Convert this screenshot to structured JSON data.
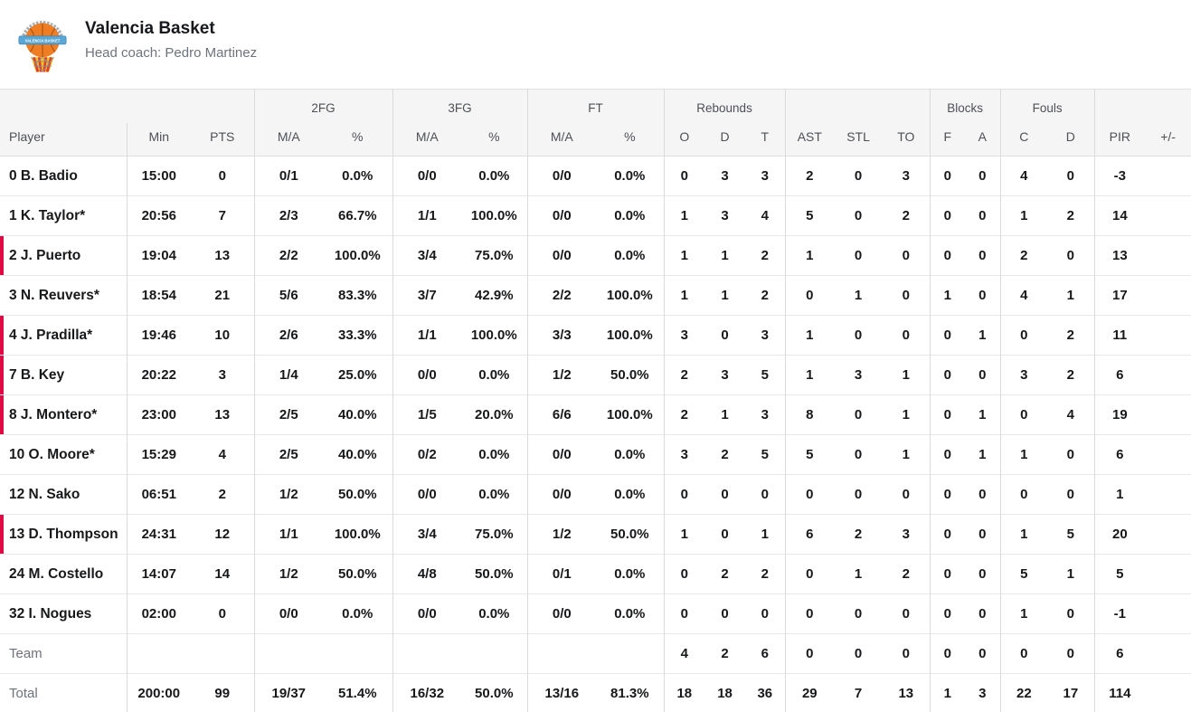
{
  "header": {
    "team_name": "Valencia Basket",
    "coach": "Head coach: Pedro Martinez",
    "logo_text": "VALENCIA BASKET",
    "logo_icon": "valencia-basket-crest-icon"
  },
  "colors": {
    "on_court_marker": "#e00a44",
    "header_background": "#f5f5f6",
    "row_border": "#e8e8ea",
    "column_border": "#dbdbdd",
    "stat_text": "#17181a",
    "muted_text": "#6d737b",
    "ball_orange": "#ee7d23",
    "banner_blue": "#5aa7d6"
  },
  "table": {
    "groups": [
      {
        "label": "",
        "span": 3
      },
      {
        "label": "2FG",
        "span": 2
      },
      {
        "label": "3FG",
        "span": 2
      },
      {
        "label": "FT",
        "span": 2
      },
      {
        "label": "Rebounds",
        "span": 3
      },
      {
        "label": "",
        "span": 3
      },
      {
        "label": "Blocks",
        "span": 2
      },
      {
        "label": "Fouls",
        "span": 2
      },
      {
        "label": "",
        "span": 2
      }
    ],
    "columns": [
      "Player",
      "Min",
      "PTS",
      "M/A",
      "%",
      "M/A",
      "%",
      "M/A",
      "%",
      "O",
      "D",
      "T",
      "AST",
      "STL",
      "TO",
      "F",
      "A",
      "C",
      "D",
      "PIR",
      "+/-"
    ],
    "rows": [
      {
        "type": "player",
        "on_court": false,
        "cells": [
          "0 B. Badio",
          "15:00",
          "0",
          "0/1",
          "0.0%",
          "0/0",
          "0.0%",
          "0/0",
          "0.0%",
          "0",
          "3",
          "3",
          "2",
          "0",
          "3",
          "0",
          "0",
          "4",
          "0",
          "-3",
          ""
        ]
      },
      {
        "type": "player",
        "on_court": false,
        "cells": [
          "1 K. Taylor*",
          "20:56",
          "7",
          "2/3",
          "66.7%",
          "1/1",
          "100.0%",
          "0/0",
          "0.0%",
          "1",
          "3",
          "4",
          "5",
          "0",
          "2",
          "0",
          "0",
          "1",
          "2",
          "14",
          ""
        ]
      },
      {
        "type": "player",
        "on_court": true,
        "cells": [
          "2 J. Puerto",
          "19:04",
          "13",
          "2/2",
          "100.0%",
          "3/4",
          "75.0%",
          "0/0",
          "0.0%",
          "1",
          "1",
          "2",
          "1",
          "0",
          "0",
          "0",
          "0",
          "2",
          "0",
          "13",
          ""
        ]
      },
      {
        "type": "player",
        "on_court": false,
        "cells": [
          "3 N. Reuvers*",
          "18:54",
          "21",
          "5/6",
          "83.3%",
          "3/7",
          "42.9%",
          "2/2",
          "100.0%",
          "1",
          "1",
          "2",
          "0",
          "1",
          "0",
          "1",
          "0",
          "4",
          "1",
          "17",
          ""
        ]
      },
      {
        "type": "player",
        "on_court": true,
        "cells": [
          "4 J. Pradilla*",
          "19:46",
          "10",
          "2/6",
          "33.3%",
          "1/1",
          "100.0%",
          "3/3",
          "100.0%",
          "3",
          "0",
          "3",
          "1",
          "0",
          "0",
          "0",
          "1",
          "0",
          "2",
          "11",
          ""
        ]
      },
      {
        "type": "player",
        "on_court": true,
        "cells": [
          "7 B. Key",
          "20:22",
          "3",
          "1/4",
          "25.0%",
          "0/0",
          "0.0%",
          "1/2",
          "50.0%",
          "2",
          "3",
          "5",
          "1",
          "3",
          "1",
          "0",
          "0",
          "3",
          "2",
          "6",
          ""
        ]
      },
      {
        "type": "player",
        "on_court": true,
        "cells": [
          "8 J. Montero*",
          "23:00",
          "13",
          "2/5",
          "40.0%",
          "1/5",
          "20.0%",
          "6/6",
          "100.0%",
          "2",
          "1",
          "3",
          "8",
          "0",
          "1",
          "0",
          "1",
          "0",
          "4",
          "19",
          ""
        ]
      },
      {
        "type": "player",
        "on_court": false,
        "cells": [
          "10 O. Moore*",
          "15:29",
          "4",
          "2/5",
          "40.0%",
          "0/2",
          "0.0%",
          "0/0",
          "0.0%",
          "3",
          "2",
          "5",
          "5",
          "0",
          "1",
          "0",
          "1",
          "1",
          "0",
          "6",
          ""
        ]
      },
      {
        "type": "player",
        "on_court": false,
        "cells": [
          "12 N. Sako",
          "06:51",
          "2",
          "1/2",
          "50.0%",
          "0/0",
          "0.0%",
          "0/0",
          "0.0%",
          "0",
          "0",
          "0",
          "0",
          "0",
          "0",
          "0",
          "0",
          "0",
          "0",
          "1",
          ""
        ]
      },
      {
        "type": "player",
        "on_court": true,
        "cells": [
          "13 D. Thompson",
          "24:31",
          "12",
          "1/1",
          "100.0%",
          "3/4",
          "75.0%",
          "1/2",
          "50.0%",
          "1",
          "0",
          "1",
          "6",
          "2",
          "3",
          "0",
          "0",
          "1",
          "5",
          "20",
          ""
        ]
      },
      {
        "type": "player",
        "on_court": false,
        "cells": [
          "24 M. Costello",
          "14:07",
          "14",
          "1/2",
          "50.0%",
          "4/8",
          "50.0%",
          "0/1",
          "0.0%",
          "0",
          "2",
          "2",
          "0",
          "1",
          "2",
          "0",
          "0",
          "5",
          "1",
          "5",
          ""
        ]
      },
      {
        "type": "player",
        "on_court": false,
        "cells": [
          "32 I. Nogues",
          "02:00",
          "0",
          "0/0",
          "0.0%",
          "0/0",
          "0.0%",
          "0/0",
          "0.0%",
          "0",
          "0",
          "0",
          "0",
          "0",
          "0",
          "0",
          "0",
          "1",
          "0",
          "-1",
          ""
        ]
      },
      {
        "type": "team",
        "on_court": false,
        "cells": [
          "Team",
          "",
          "",
          "",
          "",
          "",
          "",
          "",
          "",
          "4",
          "2",
          "6",
          "0",
          "0",
          "0",
          "0",
          "0",
          "0",
          "0",
          "6",
          ""
        ]
      },
      {
        "type": "total",
        "on_court": false,
        "cells": [
          "Total",
          "200:00",
          "99",
          "19/37",
          "51.4%",
          "16/32",
          "50.0%",
          "13/16",
          "81.3%",
          "18",
          "18",
          "36",
          "29",
          "7",
          "13",
          "1",
          "3",
          "22",
          "17",
          "114",
          ""
        ]
      }
    ]
  }
}
